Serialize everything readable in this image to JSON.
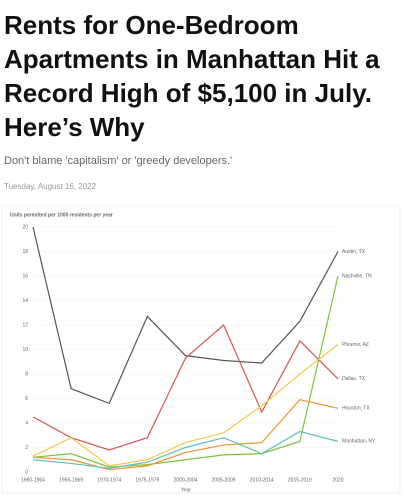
{
  "header": {
    "title": "Rents for One-Bedroom Apartments in Manhattan Hit a Record High of $5,100 in July. Here’s Why",
    "subtitle": "Don't blame 'capitalism' or 'greedy developers.'",
    "date": "Tuesday, August 16, 2022"
  },
  "chart_data": {
    "type": "line",
    "y_label": "Units permitted per 1000 residents per year",
    "x_label": "Year",
    "categories": [
      "1960-1964",
      "1965-1969",
      "1970-1974",
      "1975-1979",
      "2000-2004",
      "2005-2009",
      "2010-2014",
      "2015-2019",
      "2020"
    ],
    "ylim": [
      0,
      20
    ],
    "yticks": [
      0,
      2,
      4,
      6,
      8,
      10,
      12,
      14,
      16,
      18,
      20
    ],
    "grid": true,
    "series": [
      {
        "name": "Austin, TX",
        "color": "#555555",
        "values": [
          20,
          6.8,
          5.6,
          12.7,
          9.5,
          9.1,
          8.9,
          12.3,
          18
        ]
      },
      {
        "name": "Dallas, TX",
        "color": "#d9534f",
        "values": [
          4.5,
          2.8,
          1.8,
          2.8,
          9.3,
          12,
          4.9,
          10.7,
          7.6
        ]
      },
      {
        "name": "Nashville, TN",
        "color": "#7cc242",
        "values": [
          1.2,
          1.5,
          0.4,
          0.6,
          1.0,
          1.4,
          1.5,
          2.5,
          16
        ]
      },
      {
        "name": "Phoenix, AZ",
        "color": "#f2c94c",
        "values": [
          1.3,
          2.8,
          0.5,
          1.0,
          2.4,
          3.2,
          5.4,
          8,
          10.4
        ]
      },
      {
        "name": "Houston, TX",
        "color": "#f0932b",
        "values": [
          1.2,
          1.0,
          0.2,
          0.5,
          1.6,
          2.2,
          2.4,
          5.9,
          5.2
        ]
      },
      {
        "name": "Manhattan, NY",
        "color": "#5bc0be",
        "values": [
          1.0,
          0.7,
          0.3,
          0.8,
          2.0,
          2.8,
          1.5,
          3.3,
          2.5
        ]
      }
    ]
  }
}
